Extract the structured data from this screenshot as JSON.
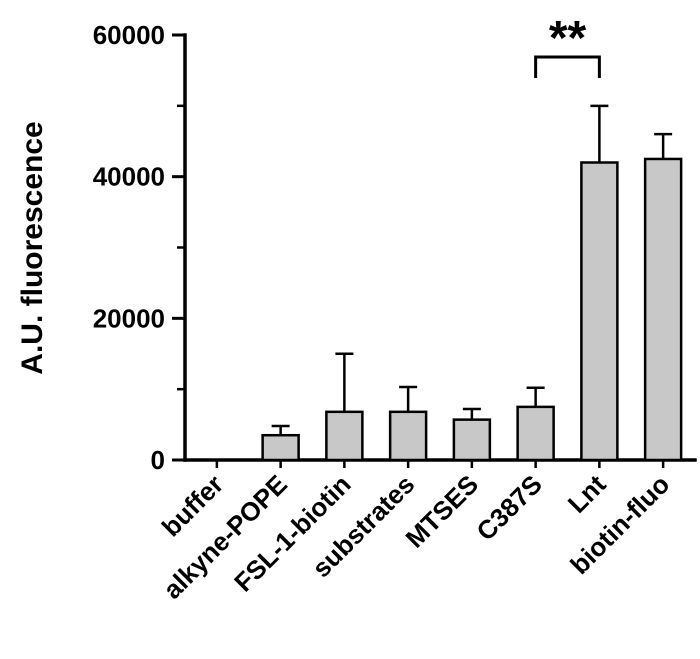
{
  "chart_data": {
    "type": "bar",
    "title": "",
    "xlabel": "",
    "ylabel": "A.U. fluorescence",
    "ylim": [
      0,
      60000
    ],
    "yticks": [
      0,
      20000,
      40000,
      60000
    ],
    "ytick_labels": [
      "0",
      "20000",
      "40000",
      "60000"
    ],
    "minor_yticks": [
      10000,
      30000,
      50000
    ],
    "categories": [
      "buffer",
      "alkyne-POPE",
      "FSL-1-biotin",
      "substrates",
      "MTSES",
      "C387S",
      "Lnt",
      "biotin-fluo"
    ],
    "values": [
      0,
      3500,
      6800,
      6800,
      5700,
      7500,
      42000,
      42500
    ],
    "errors_upper": [
      0,
      1300,
      8200,
      3500,
      1500,
      2700,
      8000,
      3500
    ],
    "bar_fill": "#c8c8c8",
    "bar_stroke": "#000000",
    "axis_color": "#000000",
    "grid": false,
    "legend_position": "none",
    "significance": {
      "from": "C387S",
      "to": "Lnt",
      "label": "**"
    }
  }
}
